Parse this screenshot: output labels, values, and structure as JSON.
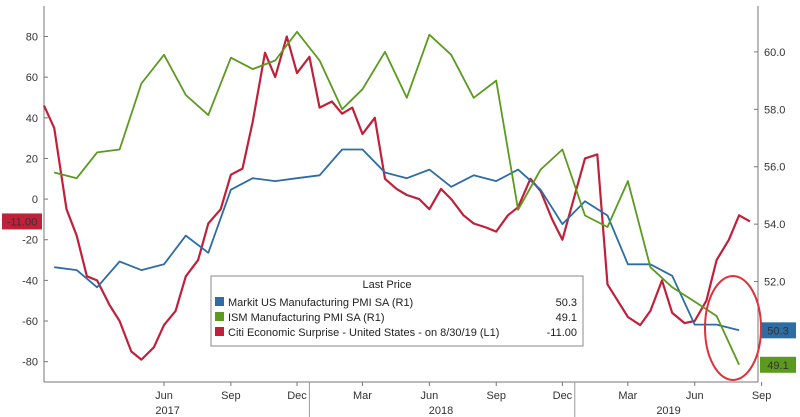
{
  "chart_data": {
    "type": "line",
    "title": "",
    "xlabel": "",
    "legend": {
      "header": "Last Price",
      "placement": "bottom-center",
      "entries": [
        {
          "label": "Markit US Manufacturing PMI SA  (R1)",
          "value": "50.3",
          "color": "#2e6ca4"
        },
        {
          "label": "ISM Manufacturing PMI SA  (R1)",
          "value": "49.1",
          "color": "#5b9a1f"
        },
        {
          "label": "Citi Economic Surprise - United States  -   on 8/30/19  (L1)",
          "value": "-11.00",
          "color": "#c0203a"
        }
      ]
    },
    "x_axis": {
      "month_ticks": [
        "Jun",
        "Sep",
        "Dec",
        "Mar",
        "Jun",
        "Sep",
        "Dec",
        "Mar",
        "Jun",
        "Sep"
      ],
      "year_labels": [
        "2017",
        "2018",
        "2019"
      ]
    },
    "left_axis": {
      "range": [
        -90,
        95
      ],
      "ticks": [
        "80",
        "60",
        "40",
        "20",
        "0",
        "-20",
        "-40",
        "-60",
        "-80"
      ],
      "tick_values": [
        80,
        60,
        40,
        20,
        0,
        -20,
        -40,
        -60,
        -80
      ],
      "last_value_tag": "-11.00"
    },
    "right_axis": {
      "range": [
        48.5,
        61.6
      ],
      "ticks": [
        "60.0",
        "58.0",
        "56.0",
        "54.0",
        "52.0"
      ],
      "tick_values": [
        60,
        58,
        56,
        54,
        52
      ],
      "value_tags": [
        {
          "series": "markit",
          "text": "50.3",
          "value": 50.3,
          "color": "#2e6ca4"
        },
        {
          "series": "ism",
          "text": "49.1",
          "value": 49.1,
          "color": "#5b9a1f"
        }
      ]
    },
    "series": [
      {
        "name": "Markit US Manufacturing PMI SA  (R1)",
        "axis": "right",
        "color": "#2e6ca4",
        "x": [
          "2017-01",
          "2017-02",
          "2017-03",
          "2017-04",
          "2017-05",
          "2017-06",
          "2017-07",
          "2017-08",
          "2017-09",
          "2017-10",
          "2017-11",
          "2017-12",
          "2018-01",
          "2018-02",
          "2018-03",
          "2018-04",
          "2018-05",
          "2018-06",
          "2018-07",
          "2018-08",
          "2018-09",
          "2018-10",
          "2018-11",
          "2018-12",
          "2019-01",
          "2019-02",
          "2019-03",
          "2019-04",
          "2019-05",
          "2019-06",
          "2019-07",
          "2019-08"
        ],
        "y": [
          52.5,
          52.4,
          51.8,
          52.7,
          52.4,
          52.6,
          53.6,
          53.0,
          55.2,
          55.6,
          55.5,
          55.6,
          55.7,
          56.6,
          56.6,
          55.8,
          55.6,
          55.9,
          55.3,
          55.7,
          55.5,
          55.9,
          55.2,
          54.0,
          54.8,
          54.3,
          52.6,
          52.6,
          52.2,
          50.5,
          50.5,
          50.3
        ]
      },
      {
        "name": "ISM Manufacturing PMI SA  (R1)",
        "axis": "right",
        "color": "#5b9a1f",
        "x": [
          "2017-01",
          "2017-02",
          "2017-03",
          "2017-04",
          "2017-05",
          "2017-06",
          "2017-07",
          "2017-08",
          "2017-09",
          "2017-10",
          "2017-11",
          "2017-12",
          "2018-01",
          "2018-02",
          "2018-03",
          "2018-04",
          "2018-05",
          "2018-06",
          "2018-07",
          "2018-08",
          "2018-09",
          "2018-10",
          "2018-11",
          "2018-12",
          "2019-01",
          "2019-02",
          "2019-03",
          "2019-04",
          "2019-05",
          "2019-06",
          "2019-07",
          "2019-08"
        ],
        "y": [
          55.8,
          55.6,
          56.5,
          56.6,
          58.9,
          59.9,
          58.5,
          57.8,
          59.8,
          59.4,
          59.7,
          60.7,
          59.7,
          58.0,
          58.7,
          60.0,
          58.4,
          60.6,
          59.9,
          58.4,
          59.0,
          54.5,
          55.9,
          56.6,
          54.3,
          53.9,
          55.5,
          52.5,
          51.8,
          51.3,
          50.8,
          49.1
        ]
      },
      {
        "name": "Citi Economic Surprise - United States  -   on 8/30/19  (L1)",
        "axis": "left",
        "color": "#c0203a",
        "x": [
          "2017-01-01",
          "2017-01-15",
          "2017-02-01",
          "2017-02-15",
          "2017-03-01",
          "2017-03-15",
          "2017-04-01",
          "2017-04-15",
          "2017-05-01",
          "2017-05-15",
          "2017-06-01",
          "2017-06-15",
          "2017-07-01",
          "2017-07-15",
          "2017-08-01",
          "2017-08-15",
          "2017-09-01",
          "2017-09-15",
          "2017-10-01",
          "2017-10-15",
          "2017-11-01",
          "2017-11-15",
          "2017-12-01",
          "2017-12-15",
          "2018-01-01",
          "2018-01-15",
          "2018-02-01",
          "2018-02-15",
          "2018-03-01",
          "2018-03-15",
          "2018-04-01",
          "2018-04-15",
          "2018-05-01",
          "2018-05-15",
          "2018-06-01",
          "2018-06-15",
          "2018-07-01",
          "2018-07-15",
          "2018-08-01",
          "2018-08-15",
          "2018-09-01",
          "2018-09-15",
          "2018-10-01",
          "2018-10-15",
          "2018-11-01",
          "2018-11-15",
          "2018-12-01",
          "2018-12-15",
          "2019-01-01",
          "2019-01-15",
          "2019-02-01",
          "2019-02-15",
          "2019-03-01",
          "2019-03-15",
          "2019-04-01",
          "2019-04-15",
          "2019-05-01",
          "2019-05-15",
          "2019-06-01",
          "2019-06-15",
          "2019-07-01",
          "2019-07-15",
          "2019-08-01",
          "2019-08-15",
          "2019-08-30"
        ],
        "y": [
          46,
          35,
          -5,
          -18,
          -38,
          -40,
          -52,
          -60,
          -75,
          -79,
          -73,
          -62,
          -55,
          -38,
          -30,
          -12,
          -5,
          12,
          15,
          38,
          72,
          60,
          80,
          62,
          70,
          45,
          48,
          42,
          45,
          32,
          40,
          10,
          5,
          2,
          0,
          -5,
          5,
          0,
          -8,
          -12,
          -14,
          -16,
          -8,
          -4,
          10,
          4,
          -10,
          -20,
          2,
          20,
          22,
          -42,
          -50,
          -58,
          -62,
          -55,
          -40,
          -56,
          -61,
          -60,
          -50,
          -30,
          -20,
          -8,
          -11
        ]
      }
    ]
  }
}
